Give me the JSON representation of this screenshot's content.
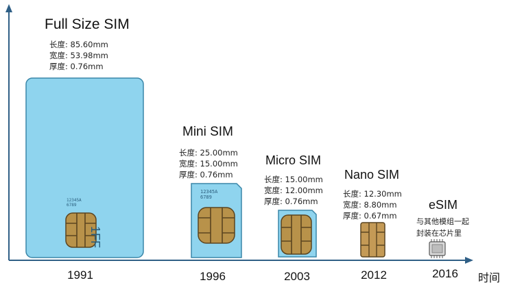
{
  "axis": {
    "x_label": "时间"
  },
  "cards": [
    {
      "title": "Full Size SIM",
      "specs": [
        "长度: 85.60mm",
        "宽度: 53.98mm",
        "厚度: 0.76mm"
      ],
      "year": "1991",
      "print_number": "12345A",
      "print_sub": "6789",
      "form_label": "1FF"
    },
    {
      "title": "Mini SIM",
      "specs": [
        "长度: 25.00mm",
        "宽度: 15.00mm",
        "厚度: 0.76mm"
      ],
      "year": "1996",
      "print_number": "12345A",
      "print_sub": "6789"
    },
    {
      "title": "Micro SIM",
      "specs": [
        "长度: 15.00mm",
        "宽度: 12.00mm",
        "厚度: 0.76mm"
      ],
      "year": "2003"
    },
    {
      "title": "Nano SIM",
      "specs": [
        "长度: 12.30mm",
        "宽度: 8.80mm",
        "厚度: 0.67mm"
      ],
      "year": "2012"
    },
    {
      "title": "eSIM",
      "note": [
        "与其他模组一起",
        "封装在芯片里"
      ],
      "year": "2016"
    }
  ],
  "colors": {
    "card_fill": "#8fd4ee",
    "card_stroke": "#3a86a8",
    "chip_gold": "#b8924a",
    "chip_line": "#5a4420",
    "axis": "#2f5f86"
  }
}
